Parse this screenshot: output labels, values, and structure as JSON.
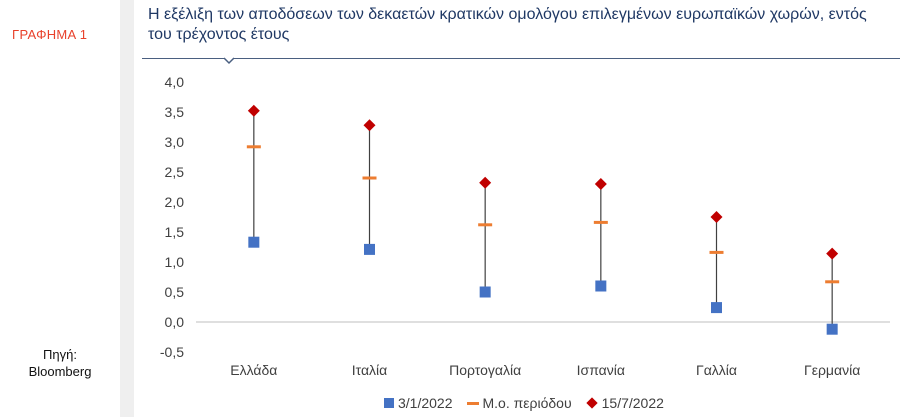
{
  "sidebar": {
    "chart_label": "ΓΡΑΦΗΜΑ 1",
    "source_title": "Πηγή:",
    "source_name": "Bloomberg"
  },
  "header": {
    "title_line1": "Η εξέλιξη των αποδόσεων των δεκαετών κρατικών ομολόγου επιλεγμένων ευρωπαϊκών χωρών, εντός",
    "title_line2": "του τρέχοντος έτους"
  },
  "legend": {
    "start_label": "3/1/2022",
    "mean_label": "Μ.ο. περιόδου",
    "end_label": "15/7/2022"
  },
  "colors": {
    "start": "#4472c4",
    "mean": "#ed7d31",
    "end": "#c00000",
    "stem": "#404040"
  },
  "chart_data": {
    "type": "scatter",
    "categories": [
      "Ελλάδα",
      "Ιταλία",
      "Πορτογαλία",
      "Ισπανία",
      "Γαλλία",
      "Γερμανία"
    ],
    "series": [
      {
        "name": "3/1/2022",
        "marker": "square",
        "values": [
          1.33,
          1.21,
          0.5,
          0.6,
          0.24,
          -0.12
        ]
      },
      {
        "name": "Μ.ο. περιόδου",
        "marker": "dash",
        "values": [
          2.92,
          2.4,
          1.62,
          1.66,
          1.16,
          0.67
        ]
      },
      {
        "name": "15/7/2022",
        "marker": "diamond",
        "values": [
          3.52,
          3.28,
          2.32,
          2.3,
          1.75,
          1.14
        ]
      }
    ],
    "yticks": [
      "4,0",
      "3,5",
      "3,0",
      "2,5",
      "2,0",
      "1,5",
      "1,0",
      "0,5",
      "0,0",
      "-0,5"
    ],
    "ylim": [
      -0.5,
      4.0
    ],
    "grid": false,
    "legend_position": "bottom"
  }
}
